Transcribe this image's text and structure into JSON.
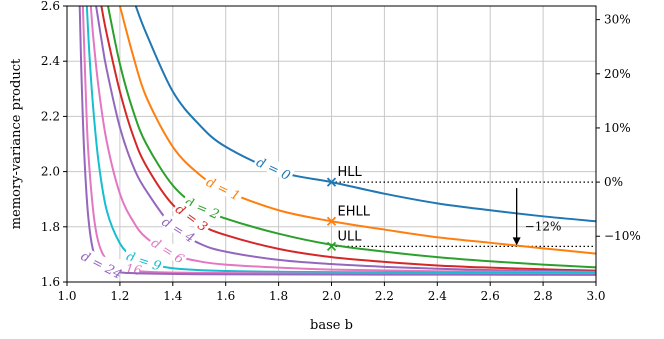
{
  "chart_data": {
    "type": "line",
    "xlabel": "base b",
    "ylabel": "memory-variance product",
    "xlim": [
      1.0,
      3.0
    ],
    "ylim": [
      1.6,
      2.6
    ],
    "x_ticks": [
      "1.0",
      "1.2",
      "1.4",
      "1.6",
      "1.8",
      "2.0",
      "2.2",
      "2.4",
      "2.6",
      "2.8",
      "3.0"
    ],
    "y_ticks": [
      "1.6",
      "1.8",
      "2.0",
      "2.2",
      "2.4",
      "2.6"
    ],
    "y2_ticks": [
      "−10%",
      "0%",
      "10%",
      "20%",
      "30%"
    ],
    "y2_reference": 1.962,
    "grid": true,
    "series": [
      {
        "name": "d = 0",
        "color": "#1f77b4",
        "label_x": 1.78,
        "x": [
          1.26,
          1.3,
          1.4,
          1.5,
          1.6,
          1.8,
          2.0,
          2.2,
          2.4,
          2.6,
          2.8,
          3.0
        ],
        "y": [
          2.6,
          2.5,
          2.29,
          2.17,
          2.09,
          2.0,
          1.962,
          1.92,
          1.885,
          1.86,
          1.838,
          1.82
        ]
      },
      {
        "name": "d = 1",
        "color": "#ff7f0e",
        "label_x": 1.59,
        "x": [
          1.2,
          1.25,
          1.3,
          1.4,
          1.5,
          1.6,
          1.8,
          2.0,
          2.2,
          2.4,
          2.6,
          2.8,
          3.0
        ],
        "y": [
          2.6,
          2.42,
          2.27,
          2.09,
          1.99,
          1.93,
          1.86,
          1.82,
          1.79,
          1.762,
          1.742,
          1.722,
          1.703
        ]
      },
      {
        "name": "d = 2",
        "color": "#2ca02c",
        "label_x": 1.51,
        "x": [
          1.155,
          1.2,
          1.25,
          1.3,
          1.4,
          1.5,
          1.6,
          1.8,
          2.0,
          2.2,
          2.4,
          2.6,
          2.8,
          3.0
        ],
        "y": [
          2.6,
          2.39,
          2.22,
          2.1,
          1.95,
          1.87,
          1.83,
          1.775,
          1.735,
          1.71,
          1.69,
          1.675,
          1.663,
          1.653
        ]
      },
      {
        "name": "d = 3",
        "color": "#d62728",
        "label_x": 1.47,
        "x": [
          1.13,
          1.15,
          1.2,
          1.25,
          1.3,
          1.4,
          1.5,
          1.6,
          1.8,
          2.0,
          2.2,
          2.4,
          2.6,
          2.8,
          3.0
        ],
        "y": [
          2.6,
          2.5,
          2.29,
          2.13,
          2.02,
          1.88,
          1.81,
          1.77,
          1.72,
          1.69,
          1.673,
          1.66,
          1.652,
          1.646,
          1.641
        ]
      },
      {
        "name": "d = 4",
        "color": "#9467bd",
        "label_x": 1.42,
        "x": [
          1.11,
          1.13,
          1.15,
          1.2,
          1.25,
          1.3,
          1.4,
          1.5,
          1.6,
          1.8,
          2.0,
          2.2,
          2.4,
          2.6,
          2.8,
          3.0
        ],
        "y": [
          2.6,
          2.48,
          2.37,
          2.16,
          2.02,
          1.93,
          1.8,
          1.74,
          1.71,
          1.68,
          1.665,
          1.655,
          1.648,
          1.643,
          1.64,
          1.637
        ]
      },
      {
        "name": "d = 6",
        "color": "#e377c2",
        "label_x": 1.38,
        "x": [
          1.09,
          1.1,
          1.12,
          1.15,
          1.2,
          1.25,
          1.3,
          1.4,
          1.5,
          1.6,
          1.8,
          2.0,
          2.4,
          3.0
        ],
        "y": [
          2.6,
          2.48,
          2.3,
          2.11,
          1.92,
          1.82,
          1.76,
          1.7,
          1.675,
          1.663,
          1.652,
          1.645,
          1.639,
          1.635
        ]
      },
      {
        "name": "d = 9",
        "color": "#17becf",
        "label_x": 1.29,
        "x": [
          1.075,
          1.085,
          1.1,
          1.12,
          1.15,
          1.2,
          1.25,
          1.3,
          1.4,
          1.6,
          2.0,
          3.0
        ],
        "y": [
          2.6,
          2.42,
          2.22,
          2.03,
          1.86,
          1.74,
          1.69,
          1.67,
          1.65,
          1.64,
          1.636,
          1.633
        ]
      },
      {
        "name": "d = 16",
        "color": "#e377c2",
        "label_x": 1.2,
        "x": [
          1.06,
          1.07,
          1.08,
          1.1,
          1.12,
          1.15,
          1.2,
          1.3,
          1.5,
          2.0,
          3.0
        ],
        "y": [
          2.6,
          2.31,
          2.08,
          1.85,
          1.74,
          1.68,
          1.65,
          1.637,
          1.633,
          1.63,
          1.628
        ]
      },
      {
        "name": "d = 24",
        "color": "#9467bd",
        "label_x": 1.13,
        "x": [
          1.048,
          1.055,
          1.065,
          1.08,
          1.1,
          1.13,
          1.17,
          1.25,
          1.5,
          2.0,
          3.0
        ],
        "y": [
          2.6,
          2.34,
          2.07,
          1.84,
          1.71,
          1.66,
          1.64,
          1.632,
          1.628,
          1.627,
          1.626
        ]
      }
    ],
    "points": [
      {
        "label": "HLL",
        "x": 2.0,
        "y": 1.962,
        "color": "#1f77b4"
      },
      {
        "label": "EHLL",
        "x": 2.0,
        "y": 1.82,
        "color": "#ff7f0e"
      },
      {
        "label": "ULL",
        "x": 2.0,
        "y": 1.729,
        "color": "#2ca02c"
      }
    ],
    "annotation": {
      "text": "−12%",
      "x": 2.7,
      "y_from": 1.962,
      "y_to": 1.729
    }
  }
}
